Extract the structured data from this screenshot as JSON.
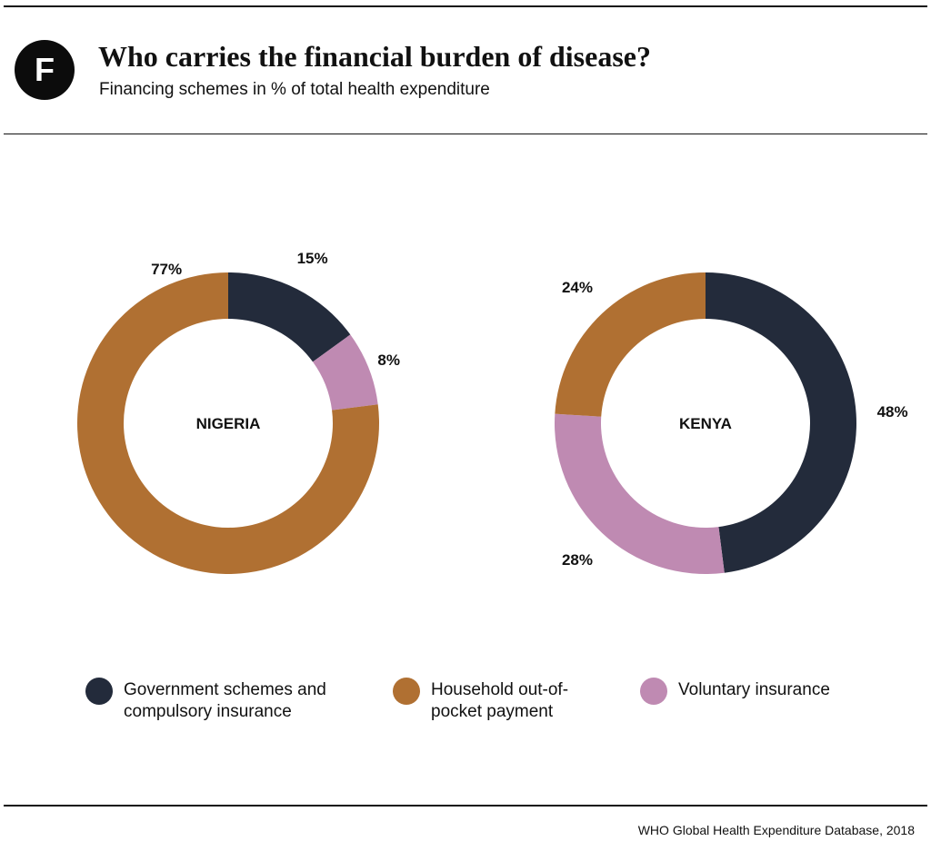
{
  "header": {
    "badge_letter": "F",
    "title": "Who carries the financial burden of disease?",
    "subtitle": "Financing schemes in % of total health expenditure"
  },
  "colors": {
    "government": "#232b3b",
    "household": "#b07032",
    "voluntary": "#bf8ab2"
  },
  "chart_data": [
    {
      "type": "pie",
      "style": "donut",
      "title": "NIGERIA",
      "slices": [
        {
          "name": "Government schemes and compulsory insurance",
          "value": 15,
          "label": "15%"
        },
        {
          "name": "Voluntary insurance",
          "value": 8,
          "label": "8%"
        },
        {
          "name": "Household out-of-pocket payment",
          "value": 77,
          "label": "77%"
        }
      ]
    },
    {
      "type": "pie",
      "style": "donut",
      "title": "KENYA",
      "slices": [
        {
          "name": "Government schemes and compulsory insurance",
          "value": 48,
          "label": "48%"
        },
        {
          "name": "Voluntary insurance",
          "value": 28,
          "label": "28%"
        },
        {
          "name": "Household out-of-pocket payment",
          "value": 24,
          "label": "24%"
        }
      ]
    }
  ],
  "legend": [
    {
      "key": "government",
      "label": "Government schemes and\ncompulsory insurance"
    },
    {
      "key": "household",
      "label": "Household out-of-\npocket payment"
    },
    {
      "key": "voluntary",
      "label": "Voluntary insurance"
    }
  ],
  "source": "WHO Global Health Expenditure Database, 2018"
}
